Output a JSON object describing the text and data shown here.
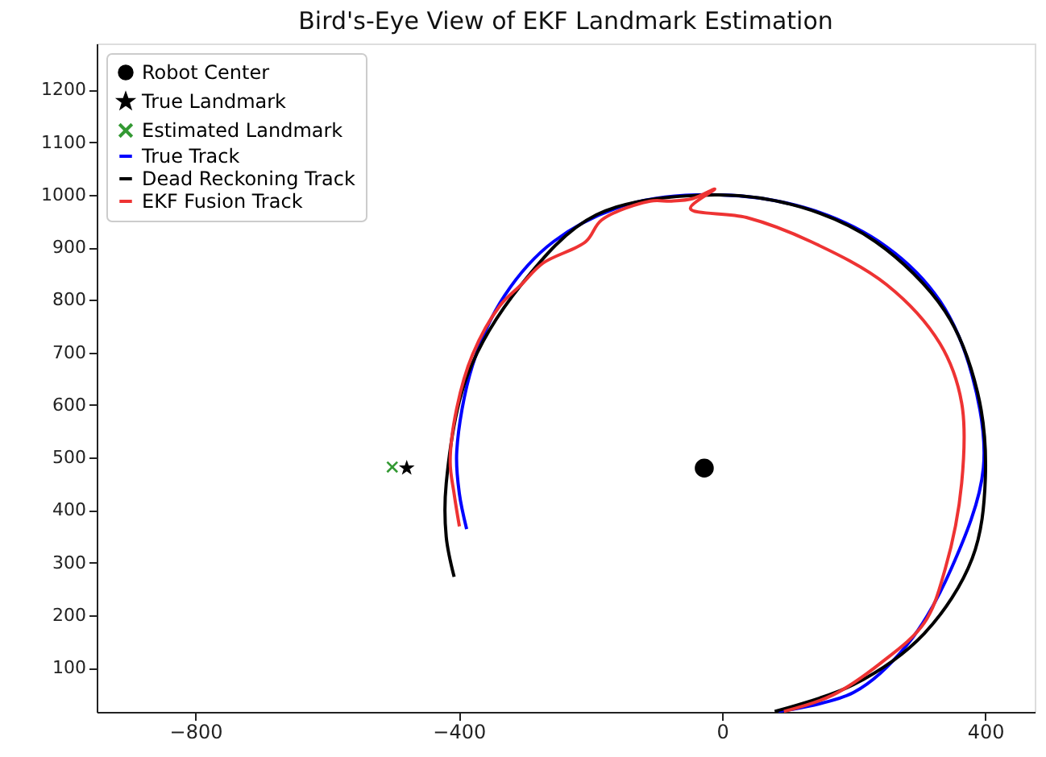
{
  "chart_data": {
    "type": "scatter",
    "title": "Bird's-Eye View of EKF Landmark Estimation",
    "xlim": [
      -950,
      475
    ],
    "ylim": [
      16,
      1288
    ],
    "xticks": [
      -800,
      -400,
      0,
      400
    ],
    "yticks": [
      100,
      200,
      300,
      400,
      500,
      600,
      700,
      800,
      900,
      1000,
      1100,
      1200
    ],
    "grid": false,
    "legend": "top left",
    "series": [
      {
        "name": "Robot Center",
        "type": "scatter",
        "marker": "circle",
        "color": "#000000",
        "x": [
          -27
        ],
        "values": [
          480
        ]
      },
      {
        "name": "True Landmark",
        "type": "scatter",
        "marker": "star",
        "color": "#000000",
        "x": [
          -479
        ],
        "values": [
          480
        ]
      },
      {
        "name": "Estimated Landmark",
        "type": "scatter",
        "marker": "cross",
        "color": "#339933",
        "x": [
          -501
        ],
        "values": [
          482
        ]
      },
      {
        "name": "True Track",
        "type": "line",
        "line_style": "solid",
        "color": "#0000ff",
        "x": [
          86,
          200,
          282,
          348,
          397,
          380,
          331,
          250,
          135,
          -3,
          -142,
          -256,
          -330,
          -379,
          -403,
          -399,
          -388
        ],
        "values": [
          17,
          53,
          145,
          288,
          480,
          656,
          798,
          901,
          972,
          1000,
          982,
          911,
          809,
          676,
          512,
          431,
          364
        ]
      },
      {
        "name": "Dead Reckoning Track",
        "type": "line",
        "line_style": "solid",
        "color": "#000000",
        "x": [
          80,
          200,
          307,
          380,
          400,
          388,
          339,
          233,
          119,
          -11,
          -191,
          -305,
          -387,
          -419,
          -419,
          -407
        ],
        "values": [
          17,
          68,
          165,
          308,
          461,
          625,
          778,
          911,
          977,
          1000,
          962,
          829,
          656,
          451,
          349,
          273
        ]
      },
      {
        "name": "EKF Fusion Track",
        "type": "line",
        "line_style": "solid",
        "color": "#ee3333",
        "x": [
          94,
          168,
          241,
          307,
          339,
          364,
          364,
          331,
          250,
          135,
          37,
          -48,
          -11,
          -44,
          -77,
          -109,
          -183,
          -207,
          -272,
          -305,
          -338,
          -379,
          -403,
          -413,
          -407,
          -399
        ],
        "values": [
          17,
          48,
          109,
          185,
          288,
          451,
          604,
          717,
          829,
          911,
          957,
          974,
          1011,
          993,
          988,
          988,
          952,
          911,
          870,
          829,
          788,
          696,
          594,
          492,
          431,
          369
        ]
      }
    ]
  }
}
